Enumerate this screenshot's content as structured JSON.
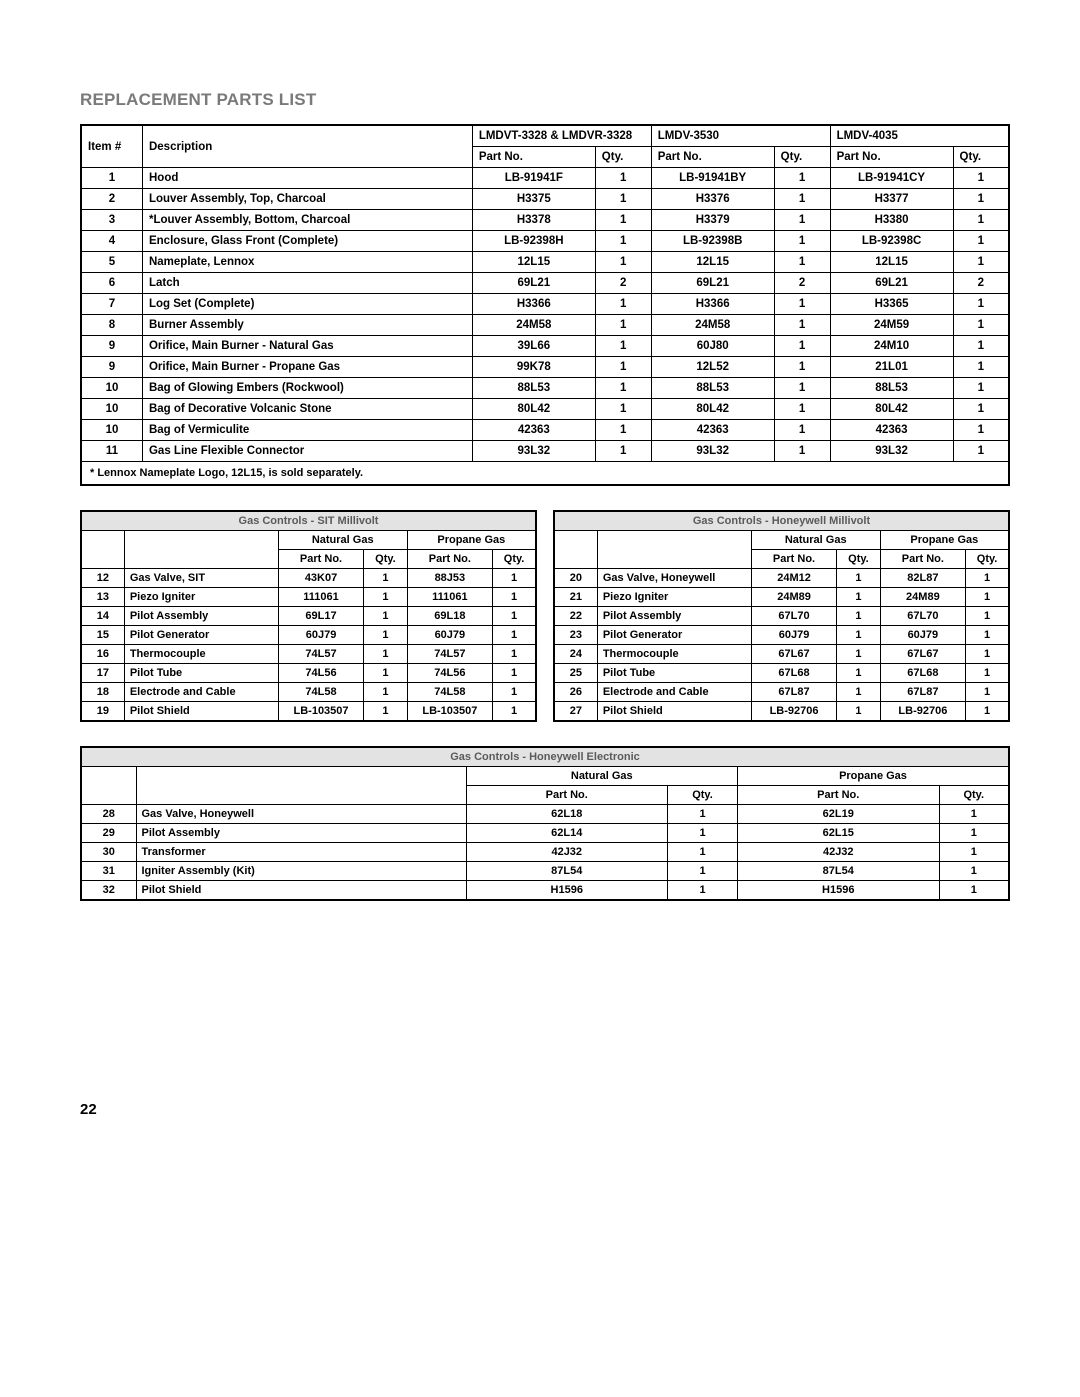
{
  "page": {
    "title": "REPLACEMENT PARTS LIST",
    "number": "22"
  },
  "main_table": {
    "head": {
      "item": "Item #",
      "desc": "Description",
      "model_a": "LMDVT-3328 & LMDVR-3328",
      "model_b": "LMDV-3530",
      "model_c": "LMDV-4035",
      "partno": "Part No.",
      "qty": "Qty."
    },
    "rows": [
      {
        "item": "1",
        "desc": "Hood",
        "a_pn": "LB-91941F",
        "a_q": "1",
        "b_pn": "LB-91941BY",
        "b_q": "1",
        "c_pn": "LB-91941CY",
        "c_q": "1"
      },
      {
        "item": "2",
        "desc": "Louver Assembly, Top, Charcoal",
        "a_pn": "H3375",
        "a_q": "1",
        "b_pn": "H3376",
        "b_q": "1",
        "c_pn": "H3377",
        "c_q": "1"
      },
      {
        "item": "3",
        "desc": "*Louver Assembly, Bottom, Charcoal",
        "a_pn": "H3378",
        "a_q": "1",
        "b_pn": "H3379",
        "b_q": "1",
        "c_pn": "H3380",
        "c_q": "1"
      },
      {
        "item": "4",
        "desc": "Enclosure, Glass Front (Complete)",
        "a_pn": "LB-92398H",
        "a_q": "1",
        "b_pn": "LB-92398B",
        "b_q": "1",
        "c_pn": "LB-92398C",
        "c_q": "1"
      },
      {
        "item": "5",
        "desc": "Nameplate, Lennox",
        "a_pn": "12L15",
        "a_q": "1",
        "b_pn": "12L15",
        "b_q": "1",
        "c_pn": "12L15",
        "c_q": "1"
      },
      {
        "item": "6",
        "desc": "Latch",
        "a_pn": "69L21",
        "a_q": "2",
        "b_pn": "69L21",
        "b_q": "2",
        "c_pn": "69L21",
        "c_q": "2"
      },
      {
        "item": "7",
        "desc": "Log Set (Complete)",
        "a_pn": "H3366",
        "a_q": "1",
        "b_pn": "H3366",
        "b_q": "1",
        "c_pn": "H3365",
        "c_q": "1"
      },
      {
        "item": "8",
        "desc": "Burner Assembly",
        "a_pn": "24M58",
        "a_q": "1",
        "b_pn": "24M58",
        "b_q": "1",
        "c_pn": "24M59",
        "c_q": "1"
      },
      {
        "item": "9",
        "desc": "Orifice, Main Burner - Natural Gas",
        "a_pn": "39L66",
        "a_q": "1",
        "b_pn": "60J80",
        "b_q": "1",
        "c_pn": "24M10",
        "c_q": "1"
      },
      {
        "item": "9",
        "desc": "Orifice, Main Burner - Propane Gas",
        "a_pn": "99K78",
        "a_q": "1",
        "b_pn": "12L52",
        "b_q": "1",
        "c_pn": "21L01",
        "c_q": "1"
      },
      {
        "item": "10",
        "desc": "Bag of Glowing Embers (Rockwool)",
        "a_pn": "88L53",
        "a_q": "1",
        "b_pn": "88L53",
        "b_q": "1",
        "c_pn": "88L53",
        "c_q": "1"
      },
      {
        "item": "10",
        "desc": "Bag of Decorative Volcanic Stone",
        "a_pn": "80L42",
        "a_q": "1",
        "b_pn": "80L42",
        "b_q": "1",
        "c_pn": "80L42",
        "c_q": "1"
      },
      {
        "item": "10",
        "desc": "Bag of Vermiculite",
        "a_pn": "42363",
        "a_q": "1",
        "b_pn": "42363",
        "b_q": "1",
        "c_pn": "42363",
        "c_q": "1"
      },
      {
        "item": "11",
        "desc": "Gas Line Flexible Connector",
        "a_pn": "93L32",
        "a_q": "1",
        "b_pn": "93L32",
        "b_q": "1",
        "c_pn": "93L32",
        "c_q": "1"
      }
    ],
    "footnote": "* Lennox Nameplate Logo, 12L15, is sold separately."
  },
  "gas_sit": {
    "title": "Gas Controls - SIT Millivolt",
    "nat": "Natural Gas",
    "prop": "Propane Gas",
    "partno": "Part No.",
    "qty": "Qty.",
    "rows": [
      {
        "item": "12",
        "desc": "Gas Valve, SIT",
        "n_pn": "43K07",
        "n_q": "1",
        "p_pn": "88J53",
        "p_q": "1"
      },
      {
        "item": "13",
        "desc": "Piezo Igniter",
        "n_pn": "111061",
        "n_q": "1",
        "p_pn": "111061",
        "p_q": "1"
      },
      {
        "item": "14",
        "desc": "Pilot Assembly",
        "n_pn": "69L17",
        "n_q": "1",
        "p_pn": "69L18",
        "p_q": "1"
      },
      {
        "item": "15",
        "desc": "Pilot Generator",
        "n_pn": "60J79",
        "n_q": "1",
        "p_pn": "60J79",
        "p_q": "1"
      },
      {
        "item": "16",
        "desc": "Thermocouple",
        "n_pn": "74L57",
        "n_q": "1",
        "p_pn": "74L57",
        "p_q": "1"
      },
      {
        "item": "17",
        "desc": "Pilot Tube",
        "n_pn": "74L56",
        "n_q": "1",
        "p_pn": "74L56",
        "p_q": "1"
      },
      {
        "item": "18",
        "desc": "Electrode and Cable",
        "n_pn": "74L58",
        "n_q": "1",
        "p_pn": "74L58",
        "p_q": "1"
      },
      {
        "item": "19",
        "desc": "Pilot Shield",
        "n_pn": "LB-103507",
        "n_q": "1",
        "p_pn": "LB-103507",
        "p_q": "1"
      }
    ]
  },
  "gas_honey_mv": {
    "title": "Gas Controls - Honeywell Millivolt",
    "nat": "Natural Gas",
    "prop": "Propane Gas",
    "partno": "Part No.",
    "qty": "Qty.",
    "rows": [
      {
        "item": "20",
        "desc": "Gas Valve, Honeywell",
        "n_pn": "24M12",
        "n_q": "1",
        "p_pn": "82L87",
        "p_q": "1"
      },
      {
        "item": "21",
        "desc": "Piezo Igniter",
        "n_pn": "24M89",
        "n_q": "1",
        "p_pn": "24M89",
        "p_q": "1"
      },
      {
        "item": "22",
        "desc": "Pilot Assembly",
        "n_pn": "67L70",
        "n_q": "1",
        "p_pn": "67L70",
        "p_q": "1"
      },
      {
        "item": "23",
        "desc": "Pilot Generator",
        "n_pn": "60J79",
        "n_q": "1",
        "p_pn": "60J79",
        "p_q": "1"
      },
      {
        "item": "24",
        "desc": "Thermocouple",
        "n_pn": "67L67",
        "n_q": "1",
        "p_pn": "67L67",
        "p_q": "1"
      },
      {
        "item": "25",
        "desc": "Pilot Tube",
        "n_pn": "67L68",
        "n_q": "1",
        "p_pn": "67L68",
        "p_q": "1"
      },
      {
        "item": "26",
        "desc": "Electrode and Cable",
        "n_pn": "67L87",
        "n_q": "1",
        "p_pn": "67L87",
        "p_q": "1"
      },
      {
        "item": "27",
        "desc": "Pilot Shield",
        "n_pn": "LB-92706",
        "n_q": "1",
        "p_pn": "LB-92706",
        "p_q": "1"
      }
    ]
  },
  "gas_honey_elec": {
    "title": "Gas Controls - Honeywell Electronic",
    "nat": "Natural Gas",
    "prop": "Propane Gas",
    "partno": "Part No.",
    "qty": "Qty.",
    "rows": [
      {
        "item": "28",
        "desc": "Gas Valve, Honeywell",
        "n_pn": "62L18",
        "n_q": "1",
        "p_pn": "62L19",
        "p_q": "1"
      },
      {
        "item": "29",
        "desc": "Pilot Assembly",
        "n_pn": "62L14",
        "n_q": "1",
        "p_pn": "62L15",
        "p_q": "1"
      },
      {
        "item": "30",
        "desc": "Transformer",
        "n_pn": "42J32",
        "n_q": "1",
        "p_pn": "42J32",
        "p_q": "1"
      },
      {
        "item": "31",
        "desc": "Igniter Assembly (Kit)",
        "n_pn": "87L54",
        "n_q": "1",
        "p_pn": "87L54",
        "p_q": "1"
      },
      {
        "item": "32",
        "desc": "Pilot Shield",
        "n_pn": "H1596",
        "n_q": "1",
        "p_pn": "H1596",
        "p_q": "1"
      }
    ]
  }
}
